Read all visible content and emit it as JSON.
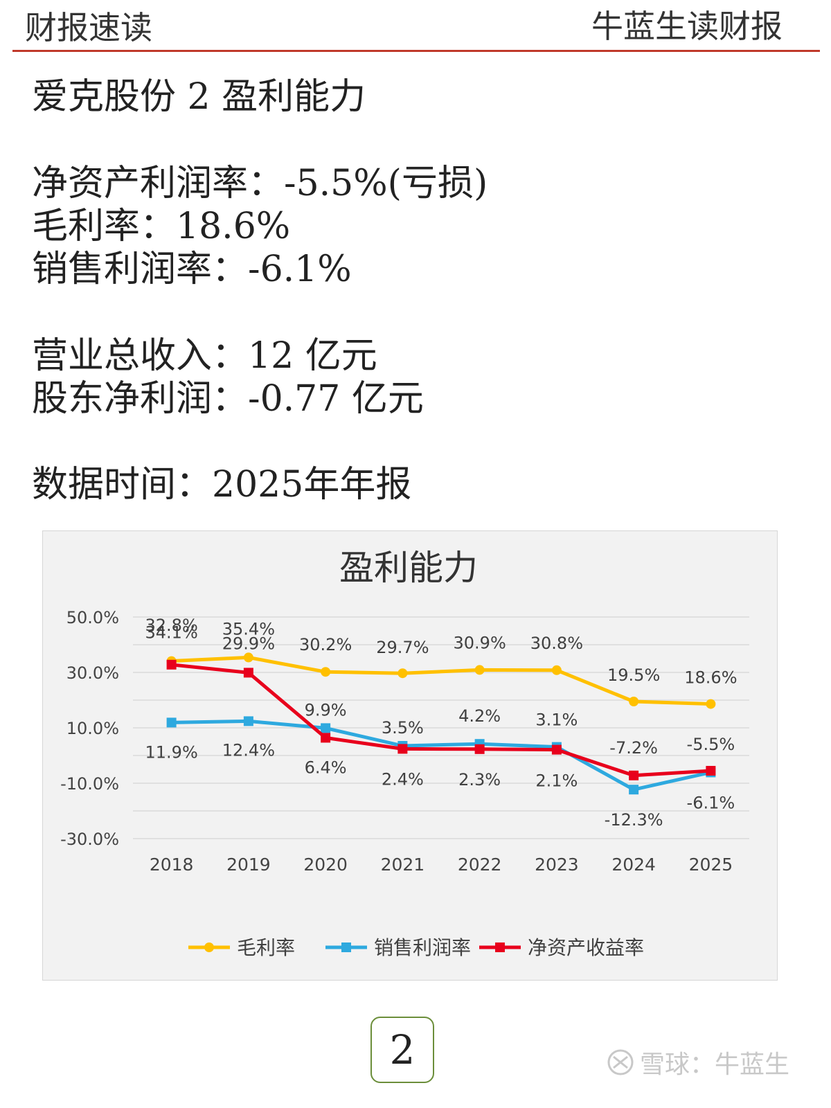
{
  "header": {
    "left": "财报速读",
    "right": "牛蓝生读财报"
  },
  "doc": {
    "title": "爱克股份 2 盈利能力",
    "roe": "净资产利润率：-5.5%(亏损)",
    "gross_margin": "毛利率：18.6%",
    "net_margin": "销售利润率：-6.1%",
    "revenue": "营业总收入：12 亿元",
    "net_profit": "股东净利润：-0.77 亿元",
    "data_time": "数据时间：2025年年报"
  },
  "chart_data": {
    "type": "line",
    "title": "盈利能力",
    "categories": [
      "2018",
      "2019",
      "2020",
      "2021",
      "2022",
      "2023",
      "2024",
      "2025"
    ],
    "y_ticks": [
      "50.0%",
      "30.0%",
      "10.0%",
      "-10.0%",
      "-30.0%"
    ],
    "ylim": [
      -30,
      50
    ],
    "series": [
      {
        "name": "毛利率",
        "color": "#FFC000",
        "marker": "circle",
        "values": [
          34.1,
          35.4,
          30.2,
          29.7,
          30.9,
          30.8,
          19.5,
          18.6
        ],
        "labels": [
          "34.1%",
          "35.4%",
          "30.2%",
          "29.7%",
          "30.9%",
          "30.8%",
          "19.5%",
          "18.6%"
        ]
      },
      {
        "name": "销售利润率",
        "color": "#2EA9DF",
        "marker": "square",
        "values": [
          11.9,
          12.4,
          9.9,
          3.5,
          4.2,
          3.1,
          -12.3,
          -6.1
        ],
        "labels": [
          "11.9%",
          "12.4%",
          "9.9%",
          "3.5%",
          "4.2%",
          "3.1%",
          "-12.3%",
          "-6.1%"
        ]
      },
      {
        "name": "净资产收益率",
        "color": "#E8001C",
        "marker": "square",
        "values": [
          32.8,
          29.9,
          6.4,
          2.4,
          2.3,
          2.1,
          -7.2,
          -5.5
        ],
        "labels": [
          "32.8%",
          "29.9%",
          "6.4%",
          "2.4%",
          "2.3%",
          "2.1%",
          "-7.2%",
          "-5.5%"
        ]
      }
    ]
  },
  "page_number": "2",
  "watermark": "雪球：牛蓝生"
}
